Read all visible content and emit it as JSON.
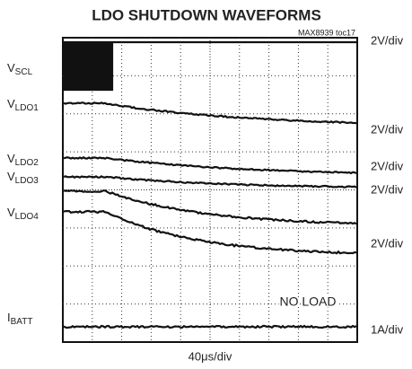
{
  "title": "LDO SHUTDOWN WAVEFORMS",
  "figure_id": "MAX8939 toc17",
  "channels": [
    {
      "main": "V",
      "sub": "SCL",
      "scale": "2V/div"
    },
    {
      "main": "V",
      "sub": "LDO1",
      "scale": "2V/div"
    },
    {
      "main": "V",
      "sub": "LDO2",
      "scale": "2V/div"
    },
    {
      "main": "V",
      "sub": "LDO3",
      "scale": "2V/div"
    },
    {
      "main": "V",
      "sub": "LDO4",
      "scale": "2V/div"
    },
    {
      "main": "I",
      "sub": "BATT",
      "scale": "1A/div"
    }
  ],
  "annotation": "NO LOAD",
  "time_scale": "40μs/div"
}
